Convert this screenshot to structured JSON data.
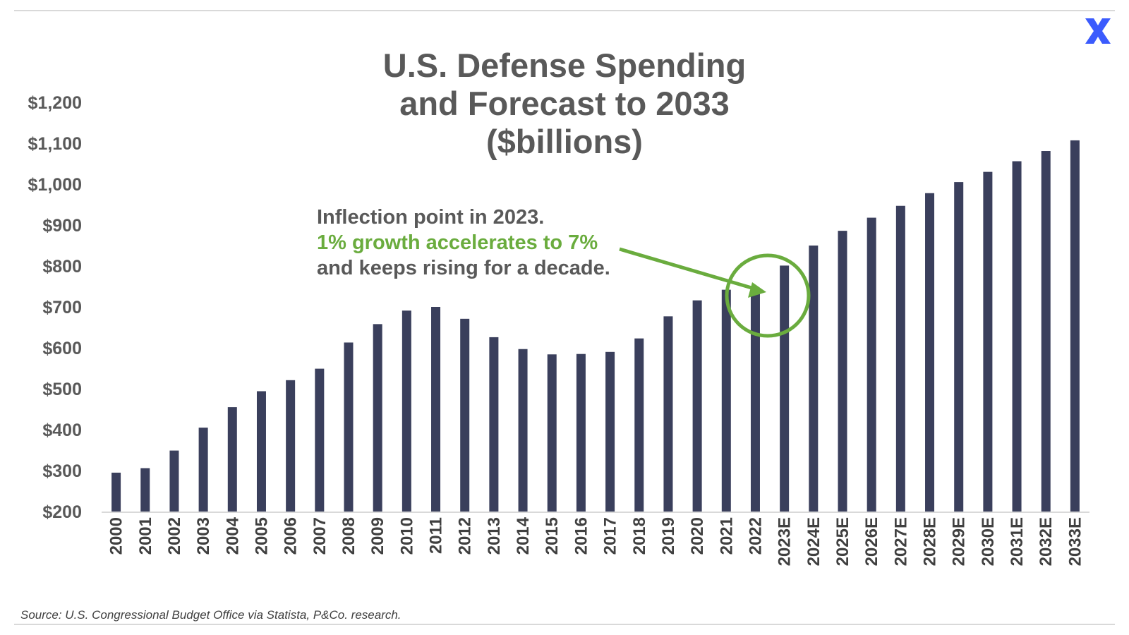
{
  "header": {
    "title_lines": [
      "U.S. Defense Spending",
      "and Forecast to 2033",
      "($billions)"
    ]
  },
  "annotation": {
    "line1": "Inflection point in 2023.",
    "line2": "1% growth accelerates to 7%",
    "line3": "and keeps rising for a decade."
  },
  "footer": {
    "source": "Source: U.S. Congressional Budget Office via Statista, P&Co. research."
  },
  "logo": {
    "icon": "x-logo-icon",
    "color": "#3b5bfd"
  },
  "colors": {
    "bar": "#3a3f5c",
    "accent": "#6aac3e",
    "text": "#595959"
  },
  "chart_data": {
    "type": "bar",
    "title": "U.S. Defense Spending and Forecast to 2033 ($billions)",
    "categories": [
      "2000",
      "2001",
      "2002",
      "2003",
      "2004",
      "2005",
      "2006",
      "2007",
      "2008",
      "2009",
      "2010",
      "2011",
      "2012",
      "2013",
      "2014",
      "2015",
      "2016",
      "2017",
      "2018",
      "2019",
      "2020",
      "2021",
      "2022",
      "2023E",
      "2024E",
      "2025E",
      "2026E",
      "2027E",
      "2028E",
      "2029E",
      "2030E",
      "2031E",
      "2032E",
      "2033E"
    ],
    "values": [
      295,
      306,
      349,
      405,
      455,
      494,
      521,
      549,
      613,
      658,
      691,
      700,
      671,
      626,
      597,
      584,
      585,
      590,
      623,
      677,
      716,
      742,
      746,
      801,
      850,
      886,
      918,
      947,
      978,
      1005,
      1030,
      1056,
      1081,
      1107
    ],
    "y_ticks": [
      "$200",
      "$300",
      "$400",
      "$500",
      "$600",
      "$700",
      "$800",
      "$900",
      "$1,000",
      "$1,100",
      "$1,200"
    ],
    "ylim": [
      200,
      1200
    ],
    "xlabel": "",
    "ylabel": "",
    "grid": false,
    "legend": "none"
  }
}
